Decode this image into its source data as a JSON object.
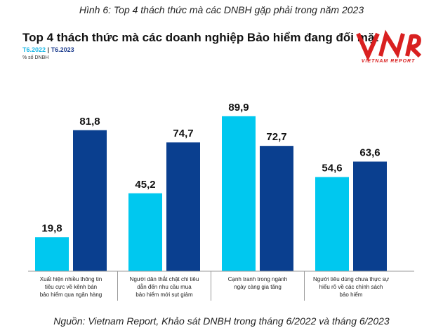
{
  "caption": "Hình 6: Top 4 thách thức mà các DNBH gặp phải trong năm 2023",
  "footer": "Nguồn: Vietnam Report, Khảo sát DNBH trong tháng 6/2022 và tháng 6/2023",
  "logo": {
    "mark": "VNR",
    "text": "VIETNAM REPORT",
    "color": "#d92020"
  },
  "chart_data": {
    "type": "bar",
    "title": "Top 4 thách thức mà các doanh nghiệp Bảo hiểm đang đối mặt",
    "unit_label": "% số DNBH",
    "legend_separator": "|",
    "categories": [
      [
        "Xuất hiện nhiều thông tin",
        "tiêu cực về kênh bán",
        "bảo hiểm qua ngân hàng"
      ],
      [
        "Người dân thắt chặt chi tiêu",
        "dẫn đến nhu cầu mua",
        "bảo hiểm mới sụt giảm"
      ],
      [
        "Cạnh tranh trong ngành",
        "ngày càng gia tăng"
      ],
      [
        "Người tiêu dùng chưa thực sự",
        "hiểu rõ về các chính sách",
        "bảo hiểm"
      ]
    ],
    "series": [
      {
        "name": "T6.2022",
        "color": "#00c8ef",
        "values": [
          19.8,
          45.2,
          89.9,
          54.6
        ],
        "labels": [
          "19,8",
          "45,2",
          "89,9",
          "54,6"
        ]
      },
      {
        "name": "T6.2023",
        "color": "#0a3f8f",
        "values": [
          81.8,
          74.7,
          72.7,
          63.6
        ],
        "labels": [
          "81,8",
          "74,7",
          "72,7",
          "63,6"
        ]
      }
    ],
    "ylim": [
      0,
      100
    ],
    "grid": false,
    "legend_position": "top-left"
  }
}
